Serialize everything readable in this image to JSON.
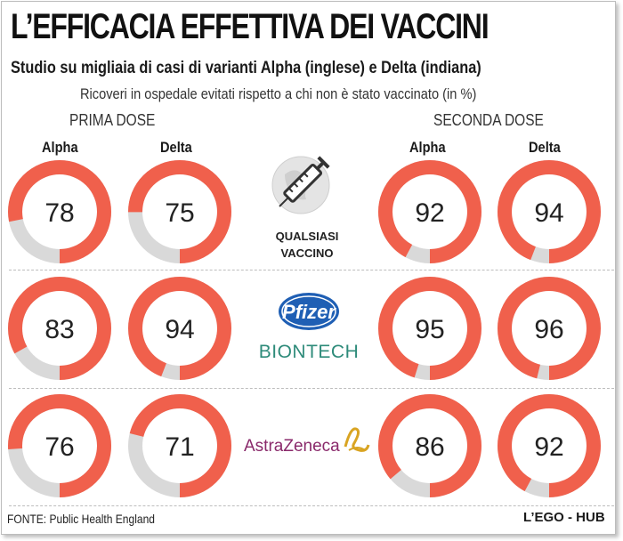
{
  "title": "L’EFFICACIA EFFETTIVA DEI VACCINI",
  "subtitle": "Studio su migliaia di casi di varianti Alpha (inglese) e Delta (indiana)",
  "note": "Ricoveri in ospedale evitati rispetto a chi non è stato vaccinato (in %)",
  "first_dose_label": "PRIMA DOSE",
  "second_dose_label": "SECONDA DOSE",
  "variant_labels": [
    "Alpha",
    "Delta",
    "Alpha",
    "Delta"
  ],
  "vaccine_any_label": [
    "QUALSIASI",
    "VACCINO"
  ],
  "pfizer_logo_text": [
    "Pfizer",
    "BIONTECH"
  ],
  "astrazeneca_logo_text": "AstraZeneca",
  "source": "FONTE: Public Health England",
  "brand": "L’EGO - HUB",
  "colors": {
    "filled": "#f0604c",
    "remaining": "#d9d9d9",
    "pfizer_blue": "#1f5fb4",
    "biontech_green": "#2e8b7a",
    "astrazeneca_purple": "#8a2a6b",
    "astrazeneca_gold": "#d9a422"
  },
  "chart_data": [
    {
      "type": "pie",
      "vaccine": "QUALSIASI VACCINO",
      "values": [
        {
          "dose": "PRIMA DOSE",
          "variant": "Alpha",
          "value": 78
        },
        {
          "dose": "PRIMA DOSE",
          "variant": "Delta",
          "value": 75
        },
        {
          "dose": "SECONDA DOSE",
          "variant": "Alpha",
          "value": 92
        },
        {
          "dose": "SECONDA DOSE",
          "variant": "Delta",
          "value": 94
        }
      ]
    },
    {
      "type": "pie",
      "vaccine": "Pfizer BIONTECH",
      "values": [
        {
          "dose": "PRIMA DOSE",
          "variant": "Alpha",
          "value": 83
        },
        {
          "dose": "PRIMA DOSE",
          "variant": "Delta",
          "value": 94
        },
        {
          "dose": "SECONDA DOSE",
          "variant": "Alpha",
          "value": 95
        },
        {
          "dose": "SECONDA DOSE",
          "variant": "Delta",
          "value": 96
        }
      ]
    },
    {
      "type": "pie",
      "vaccine": "AstraZeneca",
      "values": [
        {
          "dose": "PRIMA DOSE",
          "variant": "Alpha",
          "value": 76
        },
        {
          "dose": "PRIMA DOSE",
          "variant": "Delta",
          "value": 71
        },
        {
          "dose": "SECONDA DOSE",
          "variant": "Alpha",
          "value": 86
        },
        {
          "dose": "SECONDA DOSE",
          "variant": "Delta",
          "value": 92
        }
      ]
    }
  ]
}
